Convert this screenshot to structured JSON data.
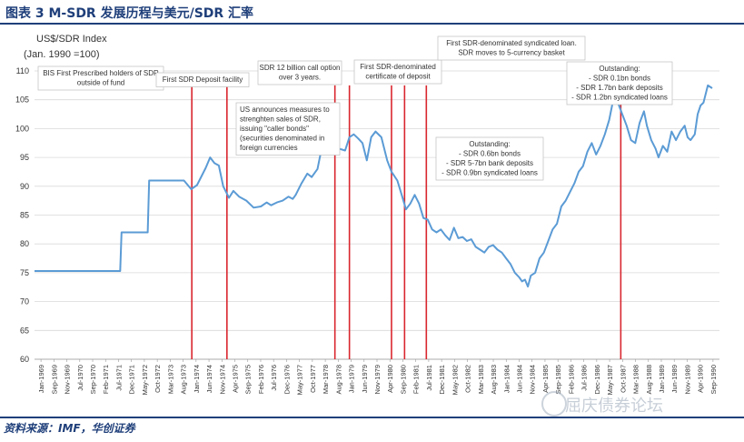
{
  "figure": {
    "title": "图表 3   M-SDR 发展历程与美元/SDR 汇率",
    "source": "资料来源：IMF，华创证券",
    "watermark": "屈庆债券论坛"
  },
  "chart_data": {
    "type": "line",
    "ylabel_line1": "US$/SDR Index",
    "ylabel_line2": "(Jan. 1990 =100)",
    "ylim": [
      60,
      110
    ],
    "yticks": [
      60,
      65,
      70,
      75,
      80,
      85,
      90,
      95,
      100,
      105,
      110
    ],
    "xticks": [
      "Jan-1969",
      "Sep-1969",
      "Nov-1969",
      "Jul-1970",
      "Sep-1970",
      "Feb-1971",
      "Jul-1971",
      "Dec-1971",
      "May-1972",
      "Oct-1972",
      "Mar-1973",
      "Aug-1973",
      "Jan-1974",
      "Jun-1974",
      "Nov-1974",
      "Apr-1975",
      "Sep-1975",
      "Feb-1976",
      "Jul-1976",
      "Dec-1976",
      "May-1977",
      "Oct-1977",
      "Mar-1978",
      "Aug-1978",
      "Jan-1979",
      "Jun-1979",
      "Nov-1979",
      "Apr-1980",
      "Sep-1980",
      "Feb-1981",
      "Jul-1981",
      "Dec-1981",
      "May-1982",
      "Oct-1982",
      "Mar-1983",
      "Aug-1983",
      "Jan-1984",
      "Jun-1984",
      "Nov-1984",
      "Apr-1985",
      "Sep-1985",
      "Feb-1986",
      "Jul-1986",
      "Dec-1986",
      "May-1987",
      "Oct-1987",
      "Mar-1988",
      "Aug-1988",
      "Jan-1989",
      "Jun-1989",
      "Nov-1989",
      "Apr-1990",
      "Sep-1990"
    ],
    "grid": "horizontal",
    "line_color": "#5b9bd5",
    "event_line_color": "#d9262e",
    "series": [
      {
        "values": [
          [
            1969.0,
            75.3
          ],
          [
            1970.0,
            75.3
          ],
          [
            1971.0,
            75.3
          ],
          [
            1971.95,
            75.3
          ],
          [
            1972.0,
            82.0
          ],
          [
            1972.9,
            82.0
          ],
          [
            1972.95,
            91.0
          ],
          [
            1974.15,
            91.0
          ],
          [
            1974.4,
            89.5
          ],
          [
            1974.6,
            90.2
          ],
          [
            1974.9,
            93.2
          ],
          [
            1975.05,
            95.0
          ],
          [
            1975.2,
            94.0
          ],
          [
            1975.35,
            93.6
          ],
          [
            1975.5,
            90.0
          ],
          [
            1975.7,
            88.0
          ],
          [
            1975.85,
            89.2
          ],
          [
            1976.05,
            88.2
          ],
          [
            1976.3,
            87.5
          ],
          [
            1976.55,
            86.3
          ],
          [
            1976.8,
            86.5
          ],
          [
            1977.0,
            87.2
          ],
          [
            1977.15,
            86.7
          ],
          [
            1977.35,
            87.2
          ],
          [
            1977.55,
            87.5
          ],
          [
            1977.75,
            88.2
          ],
          [
            1977.9,
            87.8
          ],
          [
            1978.0,
            88.5
          ],
          [
            1978.2,
            90.5
          ],
          [
            1978.4,
            92.2
          ],
          [
            1978.55,
            91.6
          ],
          [
            1978.75,
            93.0
          ],
          [
            1978.85,
            95.5
          ],
          [
            1978.92,
            97.5
          ],
          [
            1979.0,
            100.5
          ],
          [
            1979.05,
            101.5
          ],
          [
            1979.1,
            96.5
          ],
          [
            1979.2,
            98.5
          ],
          [
            1979.35,
            97.0
          ],
          [
            1979.5,
            96.5
          ],
          [
            1979.7,
            96.2
          ],
          [
            1979.85,
            98.5
          ],
          [
            1980.0,
            99.0
          ],
          [
            1980.15,
            98.3
          ],
          [
            1980.3,
            97.5
          ],
          [
            1980.45,
            94.5
          ],
          [
            1980.6,
            98.5
          ],
          [
            1980.75,
            99.5
          ],
          [
            1980.95,
            98.5
          ],
          [
            1981.15,
            94.5
          ],
          [
            1981.3,
            92.5
          ],
          [
            1981.5,
            91.0
          ],
          [
            1981.65,
            88.5
          ],
          [
            1981.8,
            86.0
          ],
          [
            1981.95,
            87.0
          ],
          [
            1982.1,
            88.5
          ],
          [
            1982.25,
            87.0
          ],
          [
            1982.4,
            84.5
          ],
          [
            1982.55,
            84.2
          ],
          [
            1982.7,
            82.5
          ],
          [
            1982.85,
            82.0
          ],
          [
            1983.0,
            82.5
          ],
          [
            1983.15,
            81.5
          ],
          [
            1983.3,
            80.7
          ],
          [
            1983.45,
            82.8
          ],
          [
            1983.6,
            81.0
          ],
          [
            1983.75,
            81.2
          ],
          [
            1983.9,
            80.5
          ],
          [
            1984.05,
            80.8
          ],
          [
            1984.2,
            79.5
          ],
          [
            1984.35,
            79.0
          ],
          [
            1984.5,
            78.5
          ],
          [
            1984.65,
            79.5
          ],
          [
            1984.8,
            79.8
          ],
          [
            1984.95,
            79.0
          ],
          [
            1985.1,
            78.5
          ],
          [
            1985.25,
            77.5
          ],
          [
            1985.4,
            76.5
          ],
          [
            1985.55,
            75.0
          ],
          [
            1985.7,
            74.2
          ],
          [
            1985.8,
            73.5
          ],
          [
            1985.9,
            73.8
          ],
          [
            1986.0,
            72.6
          ],
          [
            1986.1,
            74.5
          ],
          [
            1986.25,
            75.0
          ],
          [
            1986.4,
            77.5
          ],
          [
            1986.55,
            78.5
          ],
          [
            1986.7,
            80.5
          ],
          [
            1986.85,
            82.5
          ],
          [
            1987.0,
            83.5
          ],
          [
            1987.15,
            86.5
          ],
          [
            1987.3,
            87.5
          ],
          [
            1987.45,
            89.0
          ],
          [
            1987.6,
            90.5
          ],
          [
            1987.75,
            92.5
          ],
          [
            1987.9,
            93.5
          ],
          [
            1988.05,
            96.0
          ],
          [
            1988.2,
            97.5
          ],
          [
            1988.35,
            95.5
          ],
          [
            1988.5,
            97.0
          ],
          [
            1988.65,
            99.0
          ],
          [
            1988.8,
            101.5
          ],
          [
            1988.9,
            104.0
          ],
          [
            1989.0,
            107.5
          ],
          [
            1989.1,
            104.5
          ],
          [
            1989.25,
            102.5
          ],
          [
            1989.4,
            100.5
          ],
          [
            1989.55,
            98.0
          ],
          [
            1989.7,
            97.5
          ],
          [
            1989.85,
            101.0
          ],
          [
            1990.0,
            103.0
          ],
          [
            1990.1,
            100.5
          ],
          [
            1990.25,
            98.0
          ],
          [
            1990.4,
            96.5
          ],
          [
            1990.5,
            95.0
          ],
          [
            1990.65,
            97.0
          ],
          [
            1990.8,
            96.0
          ],
          [
            1990.95,
            99.5
          ],
          [
            1991.1,
            98.0
          ],
          [
            1991.25,
            99.5
          ],
          [
            1991.4,
            100.5
          ],
          [
            1991.5,
            98.5
          ],
          [
            1991.6,
            98.0
          ],
          [
            1991.75,
            99.0
          ],
          [
            1991.85,
            102.5
          ],
          [
            1991.95,
            104.0
          ],
          [
            1992.05,
            104.5
          ],
          [
            1992.2,
            107.5
          ],
          [
            1992.35,
            107.0
          ]
        ]
      }
    ],
    "events": [
      {
        "x": 1974.42,
        "label": "BIS First Prescribed holders of SDR outside of fund"
      },
      {
        "x": 1975.63,
        "label": "First SDR Deposit facility"
      },
      {
        "x": 1979.35,
        "label": "SDR 12 billion call option over 3 years."
      },
      {
        "x": 1979.85,
        "label": ""
      },
      {
        "x": 1981.3,
        "label": "First SDR-denominated certificate of deposit"
      },
      {
        "x": 1981.75,
        "label": "First SDR-denominated syndicated loan. SDR moves to 5-currency basket"
      },
      {
        "x": 1982.5,
        "label": "US announces measures to strenghten sales of SDR, issuing \"caller bonds\" (securities denominated in foreign currencies"
      },
      {
        "x": 1989.2,
        "label": "Outstanding: - SDR 0.6bn bonds - SDR 5-7bn bank deposits - SDR 0.9bn syndicated loans"
      }
    ],
    "annotations": [
      {
        "lines": [
          "BIS First Prescribed holders of SDR",
          "outside of fund"
        ]
      },
      {
        "lines": [
          "First SDR Deposit facility"
        ]
      },
      {
        "lines": [
          "SDR 12 billion call option",
          "over 3 years."
        ]
      },
      {
        "lines": [
          "US announces measures to",
          "strenghten sales of SDR,",
          "issuing \"caller bonds\"",
          "(securities denominated in",
          "foreign currencies"
        ]
      },
      {
        "lines": [
          "First SDR-denominated",
          "certificate of deposit"
        ]
      },
      {
        "lines": [
          "First SDR-denominated syndicated loan.",
          "SDR moves to 5-currency basket"
        ]
      },
      {
        "lines": [
          "Outstanding:",
          "- SDR 0.6bn bonds",
          "- SDR 5-7bn bank deposits",
          "- SDR 0.9bn syndicated loans"
        ]
      },
      {
        "lines": [
          "Outstanding:",
          "- SDR 0.1bn bonds",
          "- SDR 1.7bn bank deposits",
          "- SDR 1.2bn syndicated loans"
        ]
      }
    ]
  }
}
